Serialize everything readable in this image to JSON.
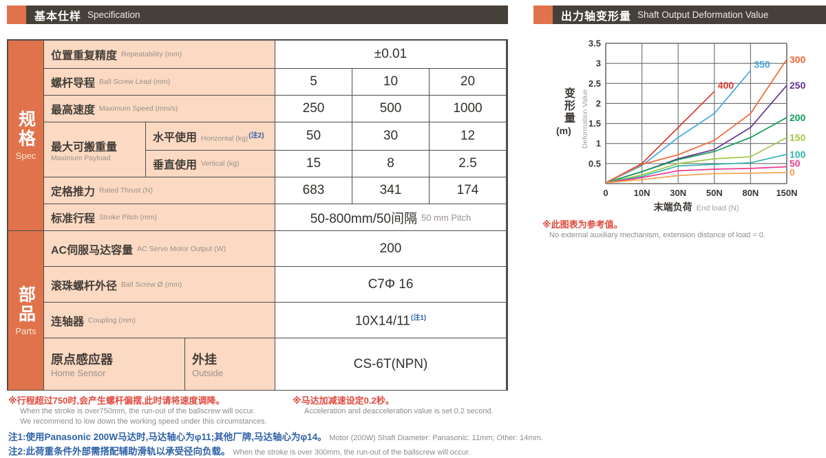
{
  "headers": {
    "left": {
      "cn": "基本仕样",
      "en": "Specification"
    },
    "right": {
      "cn": "出力轴变形量",
      "en": "Shaft Output Deformation Value"
    }
  },
  "colors": {
    "accent_orange": "#e0734c",
    "header_bg": "#46403a",
    "cell_peach": "#fbd9c2",
    "note_red": "#e04a3f",
    "note_blue": "#2e62a8"
  },
  "spec_table": {
    "sections": {
      "spec": {
        "cn": "规格",
        "en": "Spec"
      },
      "parts": {
        "cn": "部品",
        "en": "Parts"
      }
    },
    "rows": {
      "repeatability": {
        "cn": "位置重复精度",
        "en": "Repeatability (mm)",
        "value": "±0.01"
      },
      "lead": {
        "cn": "螺杆导程",
        "en": "Ball Screw Lead (mm)",
        "values": [
          "5",
          "10",
          "20"
        ]
      },
      "speed": {
        "cn": "最高速度",
        "en": "Maximum Speed (mm/s)",
        "values": [
          "250",
          "500",
          "1000"
        ]
      },
      "payload": {
        "cn": "最大可搬重量",
        "en": "Maximum Payload",
        "horizontal": {
          "cn": "水平使用",
          "en": "Horizontal (kg)",
          "note": "(注2)",
          "values": [
            "50",
            "30",
            "12"
          ]
        },
        "vertical": {
          "cn": "垂直使用",
          "en": "Vertical (kg)",
          "values": [
            "15",
            "8",
            "2.5"
          ]
        }
      },
      "thrust": {
        "cn": "定格推力",
        "en": "Rated Thrust (N)",
        "values": [
          "683",
          "341",
          "174"
        ]
      },
      "stroke": {
        "cn": "标准行程",
        "en": "Stroke Pitch (mm)",
        "value": "50-800mm/50间隔",
        "value_en": "50 mm Pitch"
      },
      "motor": {
        "cn": "AC伺服马达容量",
        "en": "AC Servo Motor Output (W)",
        "value": "200"
      },
      "screw": {
        "cn": "滚珠螺杆外径",
        "en": "Ball Screw Ø (mm)",
        "value": "C7Φ 16"
      },
      "coupling": {
        "cn": "连轴器",
        "en": "Coupling (mm)",
        "value": "10X14/11",
        "note": "(注1)"
      },
      "sensor": {
        "cn": "原点感应器",
        "en": "Home Sensor",
        "mount": {
          "cn": "外挂",
          "en": "Outside"
        },
        "value": "CS-6T(NPN)"
      }
    }
  },
  "footnotes": {
    "left_red": "※行程超过750时,会产生螺杆偏摆,此时请将速度调降。",
    "left_en1": "When the stroke is over750mm, the run-out of the ballscrew will occur.",
    "left_en2": "We recommend to low down the working speed under this circumstances.",
    "right_red": "※马达加减速设定0.2秒。",
    "right_en": "Acceleration and deacceleration value is set 0.2 second.",
    "note1_cn": "注1:使用Panasonic 200W马达时,马达轴心为φ11;其他厂牌,马达轴心为φ14。",
    "note1_en": "Motor (200W) Shaft Diameter: Panasonic: 11mm; Other: 14mm.",
    "note2_cn": "注2:此荷重条件外部需搭配辅助滑轨以承受径向负载。",
    "note2_en": "When the stroke is over 300mm, the run-out of the ballscrew will occur."
  },
  "chart": {
    "ylabel_cn": "变形量",
    "ylabel_unit": "(m)",
    "ylabel_en": "Deformation Value",
    "xlabel_cn": "末端负荷",
    "xlabel_en": "End load (N)",
    "note_red": "※此图表为参考值。",
    "note_en": "No external auxiliary mechanism, extension distance of load = 0."
  },
  "chart_data": {
    "type": "line",
    "title": "出力轴变形量 Shaft Output Deformation Value",
    "xlabel": "末端负荷 End load (N)",
    "ylabel": "变形量 (m) Deformation Value",
    "x_ticks": [
      "0",
      "10N",
      "30N",
      "50N",
      "80N",
      "150N"
    ],
    "x_values": [
      0,
      10,
      30,
      50,
      80,
      150
    ],
    "ylim": [
      0,
      3.5
    ],
    "y_ticks": [
      3.5,
      3,
      2.5,
      2,
      1.5,
      1,
      0.5
    ],
    "grid": true,
    "legend_note": "series names are stroke lengths (mm), labels placed at line ends",
    "series": [
      {
        "name": "400",
        "color": "#d9372b",
        "label": "inline",
        "values": [
          0.02,
          0.5,
          1.4,
          2.3
        ]
      },
      {
        "name": "350",
        "color": "#41a8e1",
        "label": "inline",
        "values": [
          0.02,
          0.45,
          1.15,
          1.75,
          2.82
        ]
      },
      {
        "name": "300",
        "color": "#f26532",
        "label": "right",
        "values": [
          0.02,
          0.48,
          0.72,
          1.08,
          1.75,
          3.1
        ]
      },
      {
        "name": "250",
        "color": "#63308f",
        "label": "right",
        "values": [
          0.02,
          0.3,
          0.62,
          0.85,
          1.4,
          2.45
        ]
      },
      {
        "name": "200",
        "color": "#0f9b57",
        "label": "right",
        "values": [
          0.02,
          0.3,
          0.6,
          0.8,
          1.15,
          1.65
        ]
      },
      {
        "name": "150",
        "color": "#9fc843",
        "label": "right",
        "values": [
          0.02,
          0.22,
          0.5,
          0.62,
          0.67,
          1.15
        ]
      },
      {
        "name": "100",
        "color": "#2eb3ab",
        "label": "right",
        "values": [
          0.02,
          0.18,
          0.44,
          0.48,
          0.52,
          0.73
        ]
      },
      {
        "name": "50",
        "color": "#ee3a8c",
        "label": "right",
        "values": [
          0.02,
          0.15,
          0.32,
          0.36,
          0.38,
          0.42
        ]
      },
      {
        "name": "0",
        "color": "#f5a14b",
        "label": "right",
        "values": [
          0.02,
          0.1,
          0.2,
          0.25,
          0.26,
          0.28
        ]
      }
    ]
  }
}
